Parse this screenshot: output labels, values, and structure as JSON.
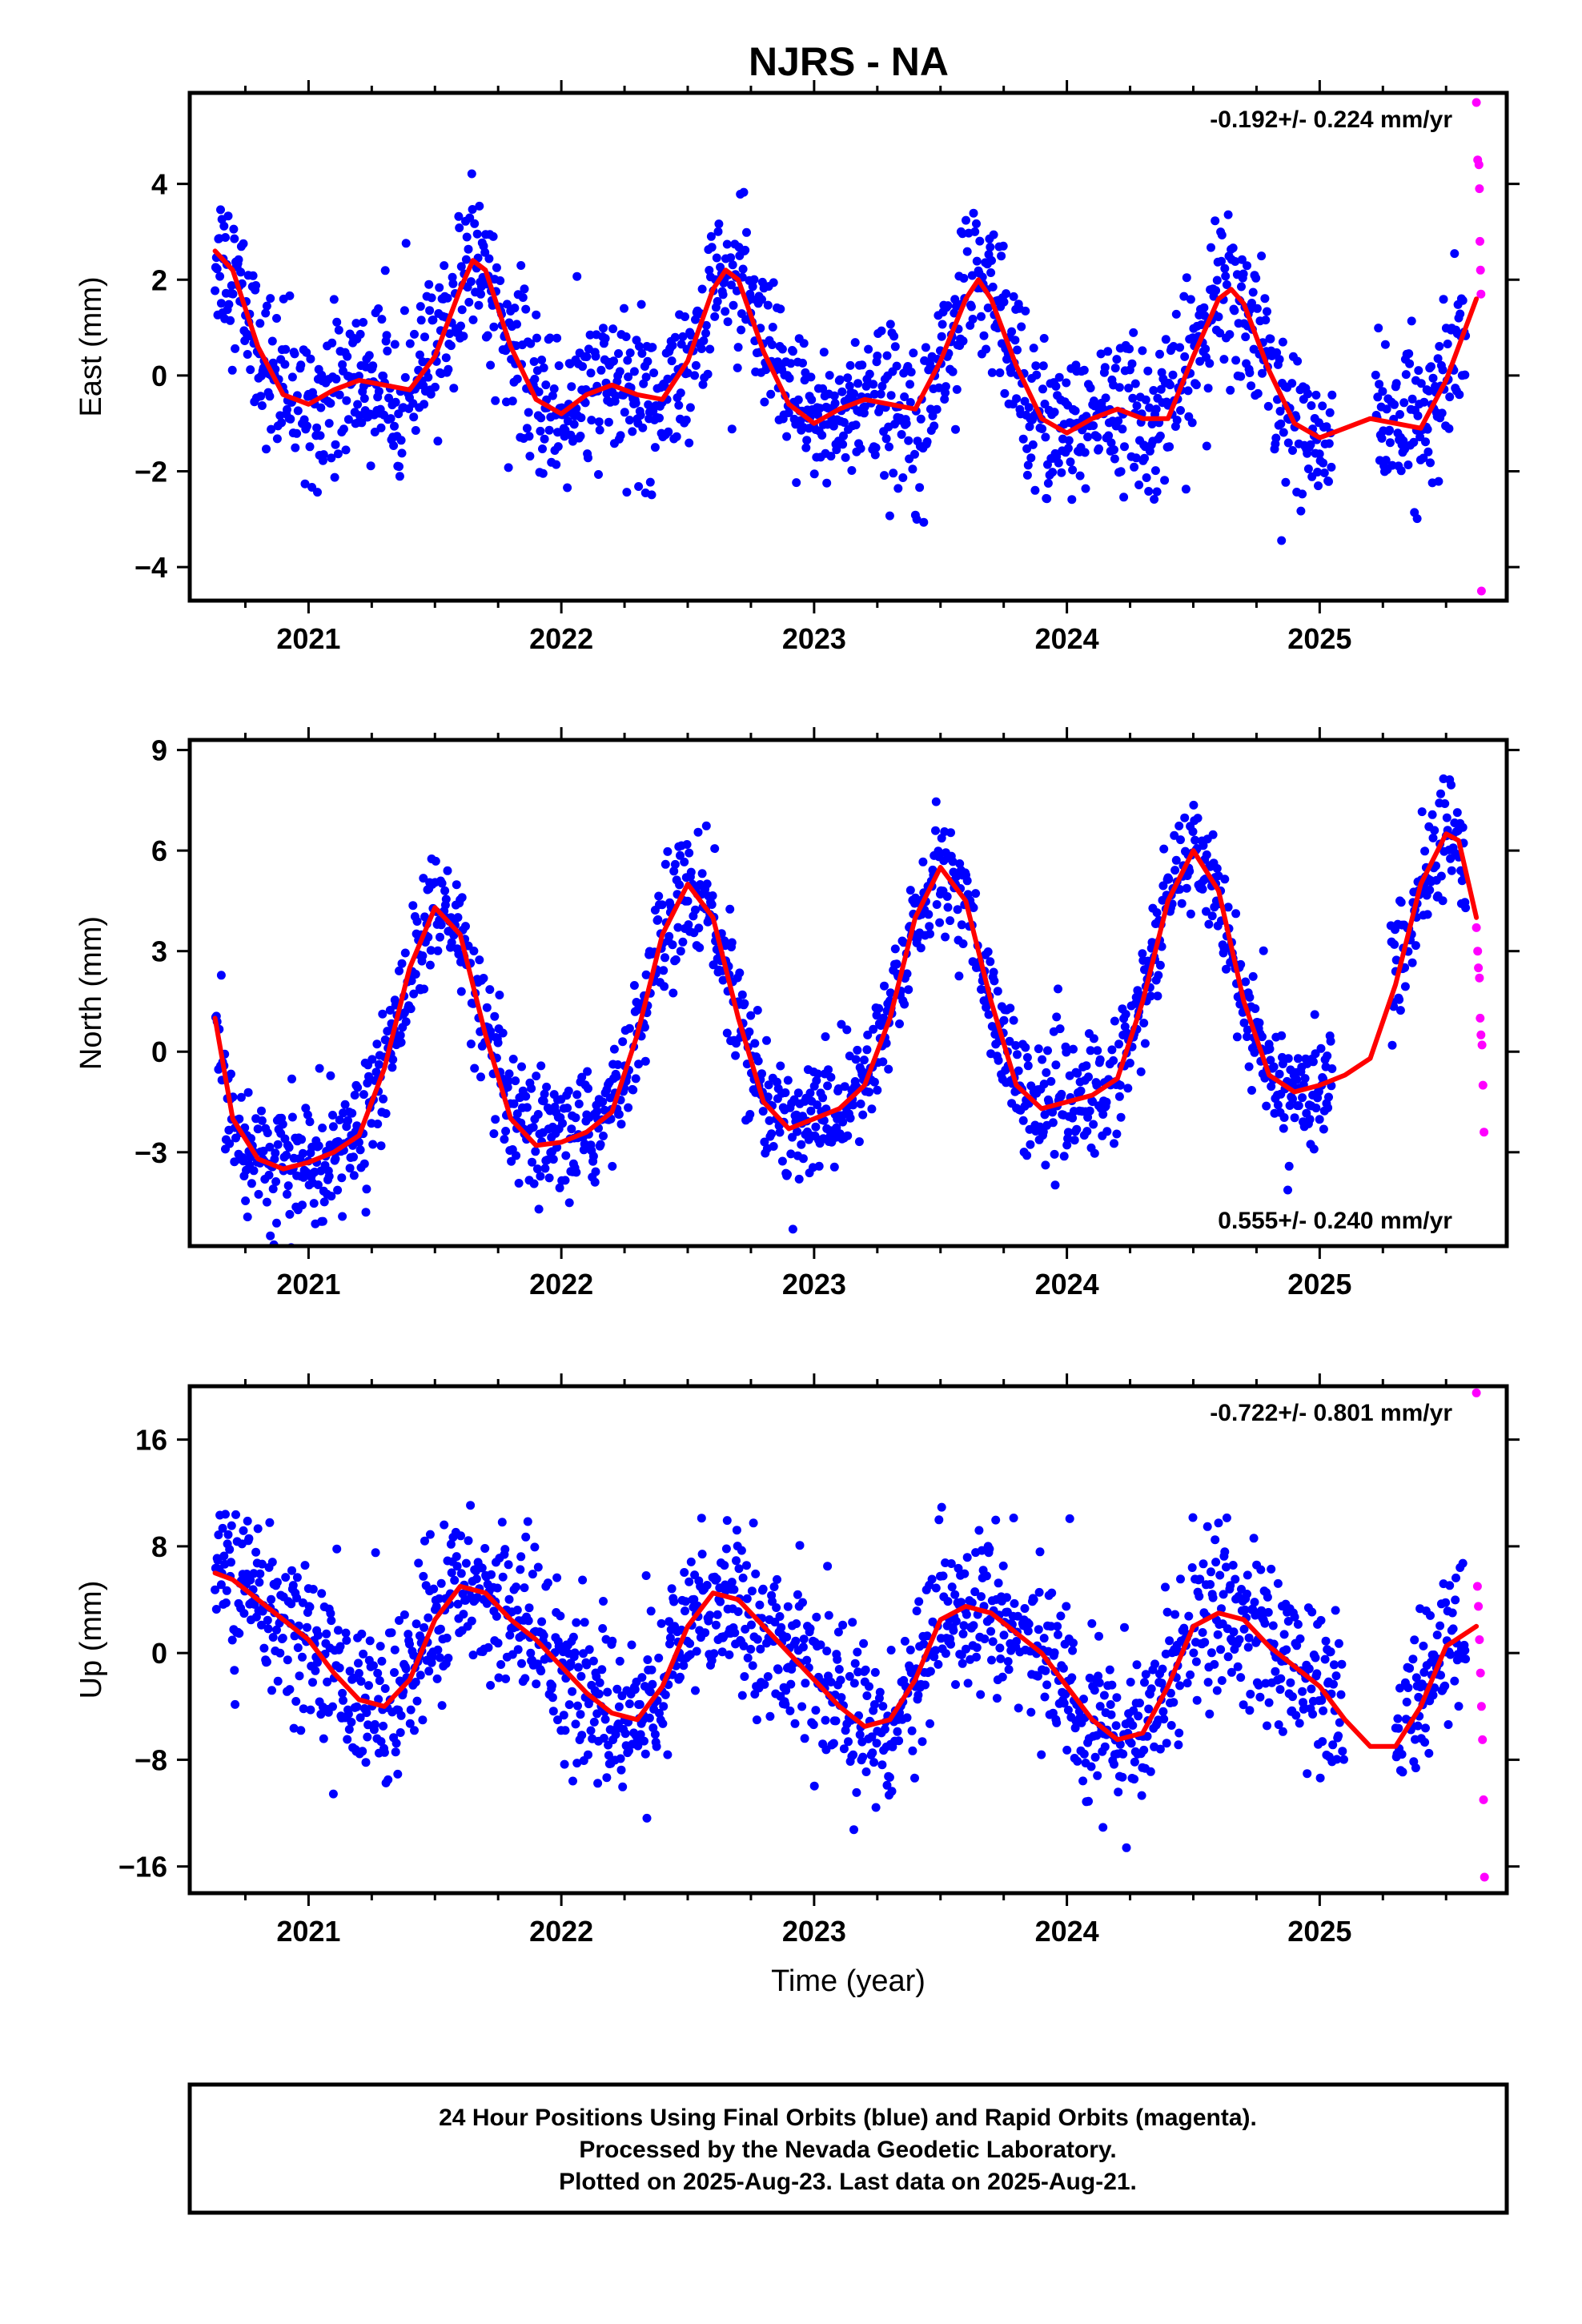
{
  "figure": {
    "title": "NJRS - NA",
    "footer": [
      "24 Hour Positions Using Final Orbits (blue) and Rapid Orbits (magenta).",
      "Processed by the Nevada Geodetic Laboratory.",
      "Plotted on 2025-Aug-23. Last data on 2025-Aug-21."
    ],
    "colors": {
      "final": "#0000ff",
      "rapid": "#ff00ff",
      "model": "#ff0000",
      "frame": "#000000"
    }
  },
  "chart_data": [
    {
      "type": "scatter",
      "component": "East",
      "ylabel": "East (mm)",
      "xlabel": "",
      "xlim": [
        2020.53,
        2025.74
      ],
      "ylim": [
        -4.7,
        5.9
      ],
      "xticks": [
        2021,
        2022,
        2023,
        2024,
        2025
      ],
      "yticks": [
        -4,
        -2,
        0,
        2,
        4
      ],
      "rate_label": "-0.192+/- 0.224 mm/yr",
      "rate_position": "top-right",
      "series": [
        {
          "kind": "final",
          "color": "#0000ff",
          "x_start": 2020.63,
          "x_end": 2025.58,
          "gaps": [
            [
              2025.05,
              2025.22
            ]
          ],
          "seasonal_amplitude": 1.4,
          "seasonal_phase_peak": 0.66,
          "trend_per_year": -0.192,
          "scatter": 0.8
        },
        {
          "kind": "rapid",
          "color": "#ff00ff",
          "x": [
            2025.62,
            2025.625,
            2025.63,
            2025.632,
            2025.634,
            2025.636,
            2025.638,
            2025.64
          ],
          "y": [
            5.7,
            4.5,
            4.4,
            3.9,
            2.8,
            2.2,
            1.7,
            -4.5
          ]
        },
        {
          "kind": "model",
          "color": "#ff0000",
          "x": [
            2020.63,
            2020.7,
            2020.8,
            2020.9,
            2021.0,
            2021.1,
            2021.2,
            2021.3,
            2021.4,
            2021.5,
            2021.6,
            2021.65,
            2021.7,
            2021.8,
            2021.9,
            2022.0,
            2022.1,
            2022.2,
            2022.3,
            2022.4,
            2022.5,
            2022.6,
            2022.65,
            2022.7,
            2022.8,
            2022.9,
            2023.0,
            2023.1,
            2023.2,
            2023.3,
            2023.4,
            2023.5,
            2023.6,
            2023.65,
            2023.7,
            2023.8,
            2023.9,
            2024.0,
            2024.1,
            2024.2,
            2024.3,
            2024.4,
            2024.5,
            2024.6,
            2024.65,
            2024.7,
            2024.8,
            2024.9,
            2025.0,
            2025.1,
            2025.2,
            2025.3,
            2025.4,
            2025.5,
            2025.62
          ],
          "y": [
            2.6,
            2.2,
            0.6,
            -0.4,
            -0.6,
            -0.3,
            -0.1,
            -0.2,
            -0.3,
            0.4,
            1.8,
            2.4,
            2.2,
            0.6,
            -0.5,
            -0.8,
            -0.4,
            -0.2,
            -0.4,
            -0.5,
            0.3,
            1.8,
            2.2,
            2.0,
            0.5,
            -0.6,
            -1.0,
            -0.7,
            -0.5,
            -0.6,
            -0.7,
            0.3,
            1.6,
            2.0,
            1.6,
            0.2,
            -0.9,
            -1.2,
            -0.9,
            -0.7,
            -0.9,
            -0.9,
            0.4,
            1.6,
            1.8,
            1.5,
            0.1,
            -1.0,
            -1.3,
            -1.1,
            -0.9,
            -1.0,
            -1.1,
            -0.1,
            1.6
          ]
        }
      ]
    },
    {
      "type": "scatter",
      "component": "North",
      "ylabel": "North (mm)",
      "xlabel": "",
      "xlim": [
        2020.53,
        2025.74
      ],
      "ylim": [
        -5.8,
        9.3
      ],
      "xticks": [
        2021,
        2022,
        2023,
        2024,
        2025
      ],
      "yticks": [
        -3,
        0,
        3,
        6,
        9
      ],
      "rate_label": "0.555+/- 0.240 mm/yr",
      "rate_position": "bottom-right",
      "series": [
        {
          "kind": "final",
          "color": "#0000ff",
          "x_start": 2020.63,
          "x_end": 2025.58,
          "gaps": [
            [
              2025.05,
              2025.28
            ]
          ],
          "seasonal_amplitude": 3.8,
          "seasonal_phase_peak": 0.5,
          "trend_per_year": 0.555,
          "scatter": 0.9
        },
        {
          "kind": "rapid",
          "color": "#ff00ff",
          "x": [
            2025.62,
            2025.625,
            2025.628,
            2025.632,
            2025.635,
            2025.638,
            2025.642,
            2025.646,
            2025.65
          ],
          "y": [
            3.7,
            3.0,
            2.5,
            2.2,
            1.0,
            0.5,
            0.2,
            -1.0,
            -2.4
          ]
        },
        {
          "kind": "model",
          "color": "#ff0000",
          "x": [
            2020.63,
            2020.7,
            2020.8,
            2020.9,
            2021.0,
            2021.1,
            2021.2,
            2021.3,
            2021.4,
            2021.5,
            2021.6,
            2021.7,
            2021.8,
            2021.9,
            2022.0,
            2022.1,
            2022.2,
            2022.3,
            2022.4,
            2022.5,
            2022.6,
            2022.7,
            2022.8,
            2022.9,
            2023.0,
            2023.1,
            2023.2,
            2023.3,
            2023.4,
            2023.5,
            2023.6,
            2023.7,
            2023.8,
            2023.9,
            2024.0,
            2024.1,
            2024.2,
            2024.3,
            2024.4,
            2024.5,
            2024.6,
            2024.7,
            2024.8,
            2024.9,
            2025.0,
            2025.1,
            2025.2,
            2025.3,
            2025.4,
            2025.5,
            2025.55,
            2025.62
          ],
          "y": [
            1.0,
            -2.0,
            -3.2,
            -3.5,
            -3.3,
            -3.0,
            -2.5,
            -0.5,
            2.5,
            4.3,
            3.5,
            0.5,
            -2.0,
            -2.8,
            -2.7,
            -2.4,
            -1.8,
            0.5,
            3.5,
            5.0,
            4.0,
            1.0,
            -1.5,
            -2.3,
            -2.0,
            -1.7,
            -1.0,
            1.0,
            4.0,
            5.5,
            4.5,
            1.5,
            -1.0,
            -1.7,
            -1.5,
            -1.3,
            -0.8,
            1.5,
            4.5,
            6.0,
            4.8,
            1.5,
            -0.7,
            -1.2,
            -1.0,
            -0.7,
            -0.2,
            2.0,
            5.0,
            6.5,
            6.3,
            4.0
          ]
        }
      ]
    },
    {
      "type": "scatter",
      "component": "Up",
      "ylabel": "Up (mm)",
      "xlabel": "Time (year)",
      "xlim": [
        2020.53,
        2025.74
      ],
      "ylim": [
        -18,
        20
      ],
      "xticks": [
        2021,
        2022,
        2023,
        2024,
        2025
      ],
      "yticks": [
        -16,
        -8,
        0,
        8,
        16
      ],
      "rate_label": "-0.722+/- 0.801 mm/yr",
      "rate_position": "top-right",
      "series": [
        {
          "kind": "final",
          "color": "#0000ff",
          "x_start": 2020.63,
          "x_end": 2025.58,
          "gaps": [
            [
              2025.1,
              2025.3
            ]
          ],
          "seasonal_amplitude": 4.8,
          "seasonal_phase_peak": 0.66,
          "trend_per_year": -0.722,
          "scatter": 3.0
        },
        {
          "kind": "rapid",
          "color": "#ff00ff",
          "x": [
            2025.62,
            2025.624,
            2025.628,
            2025.632,
            2025.636,
            2025.64,
            2025.644,
            2025.648,
            2025.652
          ],
          "y": [
            19.5,
            5.0,
            3.5,
            1.0,
            -1.5,
            -4.0,
            -6.5,
            -11.0,
            -16.8
          ]
        },
        {
          "kind": "model",
          "color": "#ff0000",
          "x": [
            2020.63,
            2020.7,
            2020.8,
            2020.9,
            2021.0,
            2021.1,
            2021.2,
            2021.3,
            2021.4,
            2021.5,
            2021.6,
            2021.7,
            2021.8,
            2021.9,
            2022.0,
            2022.1,
            2022.2,
            2022.3,
            2022.4,
            2022.5,
            2022.6,
            2022.7,
            2022.8,
            2022.9,
            2023.0,
            2023.1,
            2023.2,
            2023.3,
            2023.4,
            2023.5,
            2023.6,
            2023.7,
            2023.8,
            2023.9,
            2024.0,
            2024.1,
            2024.2,
            2024.3,
            2024.4,
            2024.5,
            2024.6,
            2024.7,
            2024.8,
            2024.9,
            2025.0,
            2025.1,
            2025.2,
            2025.3,
            2025.4,
            2025.5,
            2025.62
          ],
          "y": [
            6.0,
            5.5,
            4.0,
            2.5,
            1.0,
            -1.5,
            -3.5,
            -4.0,
            -2.0,
            2.5,
            5.0,
            4.5,
            2.5,
            1.0,
            -1.0,
            -3.0,
            -4.5,
            -5.0,
            -2.5,
            2.0,
            4.5,
            4.0,
            2.0,
            0.0,
            -2.0,
            -4.0,
            -5.5,
            -5.0,
            -2.0,
            2.5,
            3.5,
            3.0,
            1.5,
            0.0,
            -2.5,
            -5.0,
            -6.5,
            -6.0,
            -2.5,
            2.0,
            3.0,
            2.5,
            0.5,
            -1.0,
            -2.5,
            -5.0,
            -7.0,
            -7.0,
            -4.0,
            0.5,
            2.0
          ]
        }
      ]
    }
  ]
}
